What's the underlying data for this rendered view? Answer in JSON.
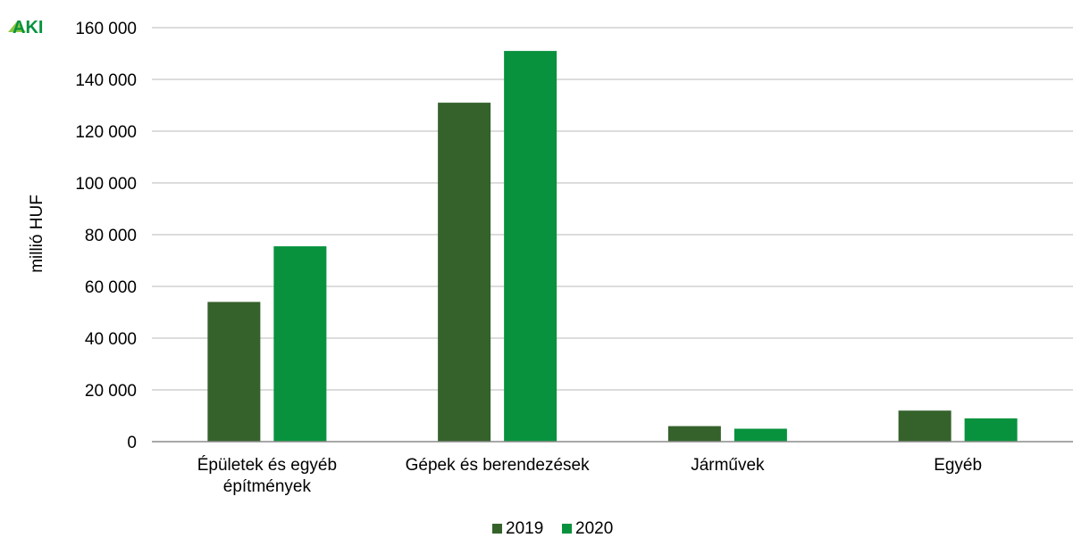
{
  "logo": {
    "text": "AKI"
  },
  "chart_data": {
    "type": "bar",
    "ylabel": "millió HUF",
    "ylim": [
      0,
      160000
    ],
    "yticks": [
      0,
      20000,
      40000,
      60000,
      80000,
      100000,
      120000,
      140000,
      160000
    ],
    "ytick_labels": [
      "0",
      "20 000",
      "40 000",
      "60 000",
      "80 000",
      "100 000",
      "120 000",
      "140 000",
      "160 000"
    ],
    "grid": true,
    "legend": "bottom-center",
    "categories": [
      [
        "Épületek és egyéb",
        "építmények"
      ],
      [
        "Gépek és berendezések"
      ],
      [
        "Járművek"
      ],
      [
        "Egyéb"
      ]
    ],
    "series": [
      {
        "name": "2019",
        "color": "#35622B",
        "values": [
          54000,
          131000,
          6000,
          12000
        ]
      },
      {
        "name": "2020",
        "color": "#08923E",
        "values": [
          75500,
          151000,
          5000,
          9000
        ]
      }
    ]
  }
}
